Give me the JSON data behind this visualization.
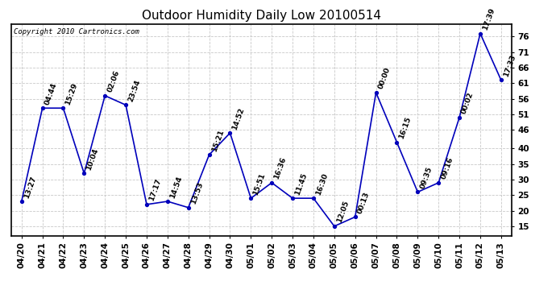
{
  "title": "Outdoor Humidity Daily Low 20100514",
  "copyright": "Copyright 2010 Cartronics.com",
  "x_labels": [
    "04/20",
    "04/21",
    "04/22",
    "04/23",
    "04/24",
    "04/25",
    "04/26",
    "04/27",
    "04/28",
    "04/29",
    "04/30",
    "05/01",
    "05/02",
    "05/03",
    "05/04",
    "05/05",
    "05/06",
    "05/07",
    "05/08",
    "05/09",
    "05/10",
    "05/11",
    "05/12",
    "05/13"
  ],
  "y_values": [
    23,
    53,
    53,
    32,
    57,
    54,
    22,
    23,
    21,
    38,
    45,
    24,
    29,
    24,
    24,
    15,
    18,
    58,
    42,
    26,
    29,
    50,
    77,
    62
  ],
  "time_labels": [
    "13:27",
    "04:44",
    "15:29",
    "10:04",
    "02:06",
    "23:54",
    "17:17",
    "14:54",
    "13:53",
    "15:21",
    "14:52",
    "15:51",
    "16:36",
    "11:45",
    "16:30",
    "12:05",
    "00:13",
    "00:00",
    "16:15",
    "09:35",
    "09:16",
    "00:02",
    "17:39",
    "17:33"
  ],
  "line_color": "#0000bb",
  "marker_color": "#0000bb",
  "background_color": "#ffffff",
  "grid_color": "#bbbbbb",
  "ylim": [
    12,
    80
  ],
  "yticks": [
    15,
    20,
    25,
    30,
    35,
    40,
    46,
    51,
    56,
    61,
    66,
    71,
    76
  ],
  "title_fontsize": 11,
  "label_fontsize": 6.5,
  "copyright_fontsize": 6.5,
  "tick_fontsize": 7.5
}
